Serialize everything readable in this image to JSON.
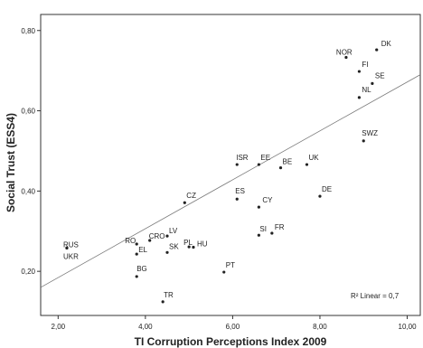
{
  "chart_data": {
    "type": "scatter",
    "xlabel": "TI Corruption Perceptions Index 2009",
    "ylabel": "Social Trust (ESS4)",
    "xlim": [
      1.6,
      10.3
    ],
    "ylim": [
      0.09,
      0.84
    ],
    "x_ticks": [
      "2,00",
      "4,00",
      "6,00",
      "8,00",
      "10,00"
    ],
    "x_tick_values": [
      2,
      4,
      6,
      8,
      10
    ],
    "y_ticks": [
      "0,20",
      "0,40",
      "0,60",
      "0,80"
    ],
    "y_tick_values": [
      0.2,
      0.4,
      0.6,
      0.8
    ],
    "fit_line": {
      "x": [
        1.6,
        10.3
      ],
      "y": [
        0.16,
        0.69
      ]
    },
    "annotation": "R² Linear = 0,7",
    "points": [
      {
        "label": "DK",
        "x": 9.3,
        "y": 0.752
      },
      {
        "label": "NOR",
        "x": 8.6,
        "y": 0.733
      },
      {
        "label": "FI",
        "x": 8.9,
        "y": 0.698
      },
      {
        "label": "SE",
        "x": 9.2,
        "y": 0.668
      },
      {
        "label": "NL",
        "x": 8.9,
        "y": 0.633
      },
      {
        "label": "SWZ",
        "x": 9.0,
        "y": 0.525
      },
      {
        "label": "ISR",
        "x": 6.1,
        "y": 0.466
      },
      {
        "label": "EE",
        "x": 6.6,
        "y": 0.466
      },
      {
        "label": "BE",
        "x": 7.1,
        "y": 0.458
      },
      {
        "label": "UK",
        "x": 7.7,
        "y": 0.466
      },
      {
        "label": "DE",
        "x": 8.0,
        "y": 0.387
      },
      {
        "label": "CZ",
        "x": 4.9,
        "y": 0.371
      },
      {
        "label": "ES",
        "x": 6.1,
        "y": 0.38
      },
      {
        "label": "CY",
        "x": 6.6,
        "y": 0.36
      },
      {
        "label": "SI",
        "x": 6.6,
        "y": 0.29
      },
      {
        "label": "FR",
        "x": 6.9,
        "y": 0.295
      },
      {
        "label": "RUS",
        "x": 2.2,
        "y": 0.258
      },
      {
        "label": "UKR",
        "x": 2.2,
        "y": 0.258
      },
      {
        "label": "RO",
        "x": 3.8,
        "y": 0.268
      },
      {
        "label": "CRO",
        "x": 4.1,
        "y": 0.277
      },
      {
        "label": "LV",
        "x": 4.5,
        "y": 0.288
      },
      {
        "label": "EL",
        "x": 3.8,
        "y": 0.243
      },
      {
        "label": "SK",
        "x": 4.5,
        "y": 0.247
      },
      {
        "label": "PL",
        "x": 5.0,
        "y": 0.261
      },
      {
        "label": "HU",
        "x": 5.1,
        "y": 0.26
      },
      {
        "label": "BG",
        "x": 3.8,
        "y": 0.187
      },
      {
        "label": "PT",
        "x": 5.8,
        "y": 0.198
      },
      {
        "label": "TR",
        "x": 4.4,
        "y": 0.124
      }
    ]
  }
}
